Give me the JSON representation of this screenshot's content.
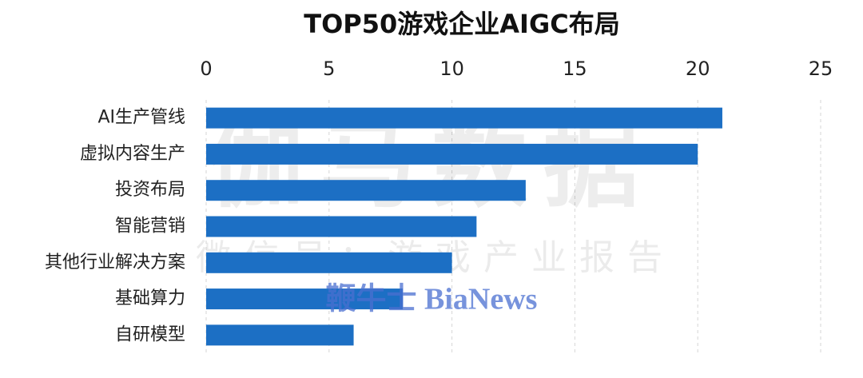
{
  "chart_data": {
    "type": "bar",
    "orientation": "horizontal",
    "title": "TOP50游戏企业AIGC布局",
    "categories": [
      "AI生产管线",
      "虚拟内容生产",
      "投资布局",
      "智能营销",
      "其他行业解决方案",
      "基础算力",
      "自研模型"
    ],
    "values": [
      21,
      20,
      13,
      11,
      10,
      8,
      6
    ],
    "color": "#1c6fc4",
    "xlim": [
      0,
      25
    ],
    "xticks": [
      0,
      5,
      10,
      15,
      20,
      25
    ],
    "grid": true,
    "watermarks": [
      "伽马数据",
      "微信号：游戏产业报告",
      "鞭牛士 BiaNews"
    ]
  }
}
